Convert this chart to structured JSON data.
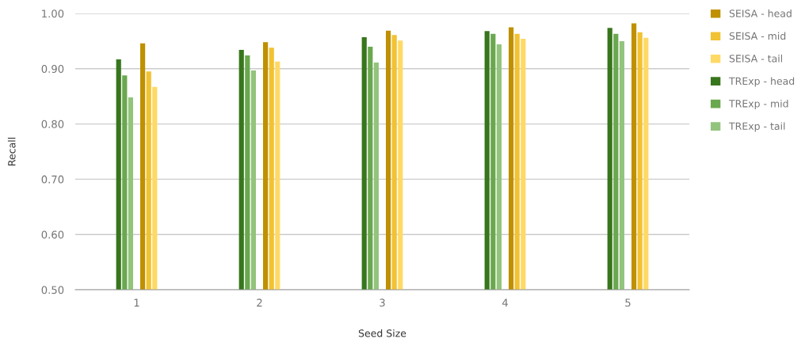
{
  "chart_data": {
    "type": "bar",
    "xlabel": "Seed Size",
    "ylabel": "Recall",
    "categories": [
      "1",
      "2",
      "3",
      "4",
      "5"
    ],
    "series": [
      {
        "name": "SEISA - head",
        "color": "#bf9000",
        "values": [
          0.946,
          0.948,
          0.969,
          0.975,
          0.982
        ]
      },
      {
        "name": "SEISA - mid",
        "color": "#f1c232",
        "values": [
          0.895,
          0.938,
          0.961,
          0.963,
          0.966
        ]
      },
      {
        "name": "SEISA - tail",
        "color": "#ffd966",
        "values": [
          0.867,
          0.913,
          0.951,
          0.954,
          0.956
        ]
      },
      {
        "name": "TRExp - head",
        "color": "#38761d",
        "values": [
          0.917,
          0.934,
          0.957,
          0.968,
          0.974
        ]
      },
      {
        "name": "TRExp - mid",
        "color": "#6aa84f",
        "values": [
          0.888,
          0.924,
          0.94,
          0.963,
          0.963
        ]
      },
      {
        "name": "TRExp - tail",
        "color": "#93c47d",
        "values": [
          0.848,
          0.897,
          0.911,
          0.944,
          0.95
        ]
      }
    ],
    "ylim": [
      0.5,
      1.0
    ],
    "yticks": [
      {
        "value": 0.5,
        "label": "0.50"
      },
      {
        "value": 0.6,
        "label": "0.60"
      },
      {
        "value": 0.7,
        "label": "0.70"
      },
      {
        "value": 0.8,
        "label": "0.80"
      },
      {
        "value": 0.9,
        "label": "0.90"
      },
      {
        "value": 1.0,
        "label": "1.00"
      }
    ],
    "grid": "y",
    "legend": "right"
  }
}
